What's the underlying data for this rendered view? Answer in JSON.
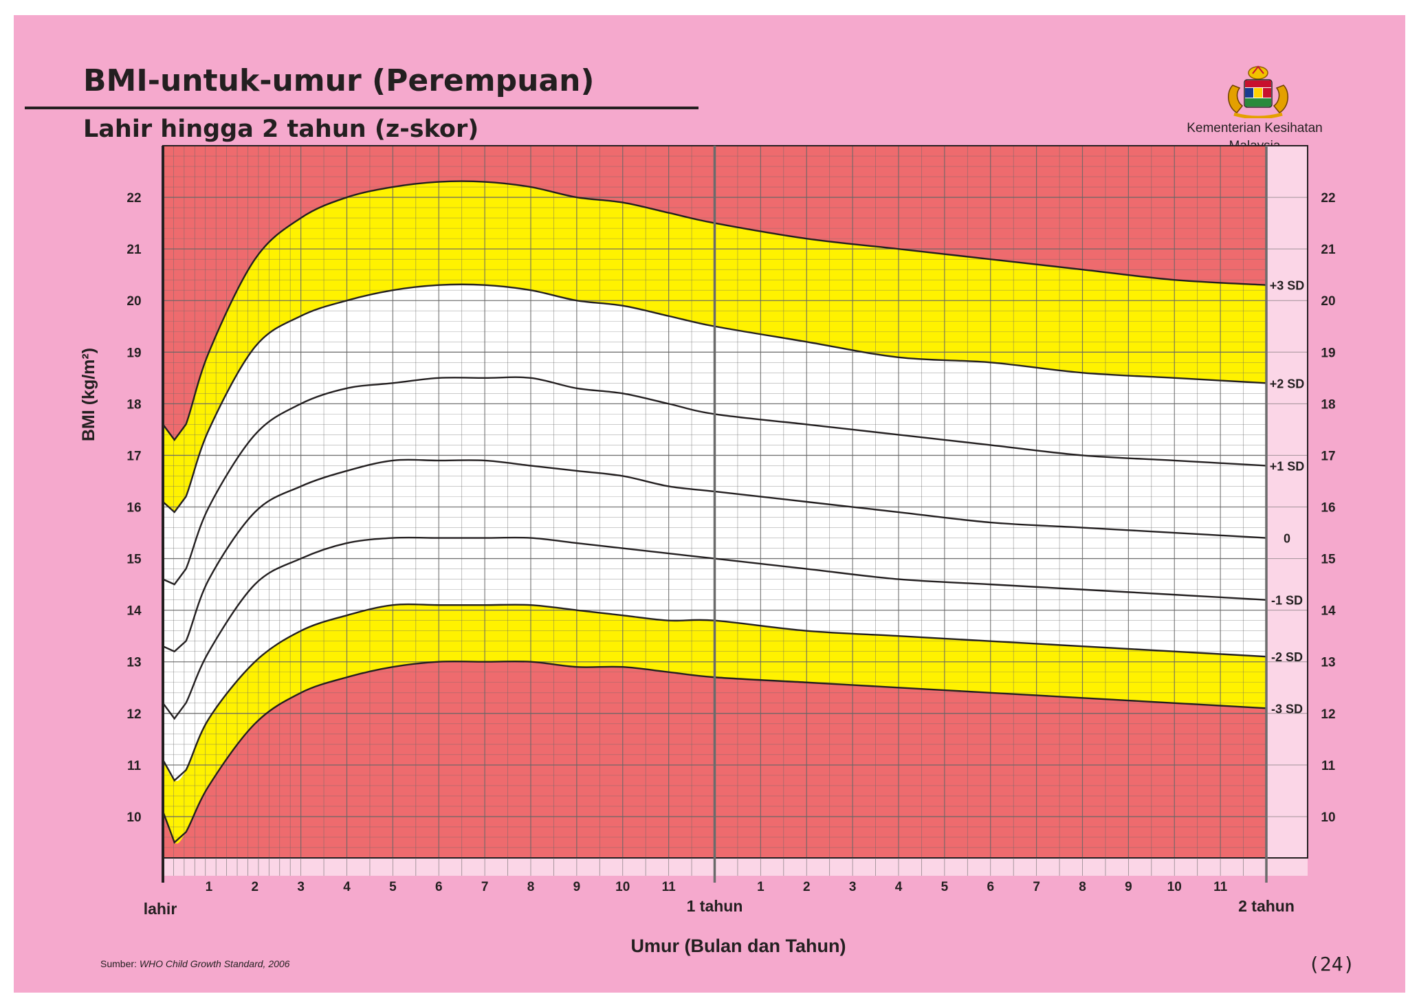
{
  "header": {
    "title": "BMI-untuk-umur (Perempuan)",
    "subtitle": "Lahir hingga 2 tahun (z-skor)",
    "ministry_line1": "Kementerian Kesihatan",
    "ministry_line2": "Malaysia",
    "logo": "malaysia-coat-of-arms"
  },
  "footer": {
    "source_label": "Sumber:",
    "source_text": "WHO Child Growth Standard, 2006",
    "page_number": "(24)"
  },
  "chart_data": {
    "type": "line",
    "ylabel": "BMI (kg/m²)",
    "xlabel": "Umur (Bulan dan Tahun)",
    "x_unit": "months",
    "xlim": [
      0,
      24
    ],
    "ylim": [
      9.2,
      23
    ],
    "y_ticks": [
      10,
      11,
      12,
      13,
      14,
      15,
      16,
      17,
      18,
      19,
      20,
      21,
      22
    ],
    "x_tick_labels": [
      {
        "x": 0,
        "label": "lahir"
      },
      {
        "x": 1,
        "label": "1"
      },
      {
        "x": 2,
        "label": "2"
      },
      {
        "x": 3,
        "label": "3"
      },
      {
        "x": 4,
        "label": "4"
      },
      {
        "x": 5,
        "label": "5"
      },
      {
        "x": 6,
        "label": "6"
      },
      {
        "x": 7,
        "label": "7"
      },
      {
        "x": 8,
        "label": "8"
      },
      {
        "x": 9,
        "label": "9"
      },
      {
        "x": 10,
        "label": "10"
      },
      {
        "x": 11,
        "label": "11"
      },
      {
        "x": 12,
        "label": "1 tahun"
      },
      {
        "x": 13,
        "label": "1"
      },
      {
        "x": 14,
        "label": "2"
      },
      {
        "x": 15,
        "label": "3"
      },
      {
        "x": 16,
        "label": "4"
      },
      {
        "x": 17,
        "label": "5"
      },
      {
        "x": 18,
        "label": "6"
      },
      {
        "x": 19,
        "label": "7"
      },
      {
        "x": 20,
        "label": "8"
      },
      {
        "x": 21,
        "label": "9"
      },
      {
        "x": 22,
        "label": "10"
      },
      {
        "x": 23,
        "label": "11"
      },
      {
        "x": 24,
        "label": "2 tahun"
      }
    ],
    "x": [
      0,
      0.25,
      0.5,
      1,
      2,
      3,
      4,
      5,
      6,
      7,
      8,
      9,
      10,
      11,
      12,
      14,
      16,
      18,
      20,
      22,
      24
    ],
    "series": [
      {
        "name": "+3 SD",
        "values": [
          17.6,
          17.3,
          17.6,
          19.0,
          20.8,
          21.6,
          22.0,
          22.2,
          22.3,
          22.3,
          22.2,
          22.0,
          21.9,
          21.7,
          21.5,
          21.2,
          21.0,
          20.8,
          20.6,
          20.4,
          20.3
        ]
      },
      {
        "name": "+2 SD",
        "values": [
          16.1,
          15.9,
          16.2,
          17.5,
          19.1,
          19.7,
          20.0,
          20.2,
          20.3,
          20.3,
          20.2,
          20.0,
          19.9,
          19.7,
          19.5,
          19.2,
          18.9,
          18.8,
          18.6,
          18.5,
          18.4
        ]
      },
      {
        "name": "+1 SD",
        "values": [
          14.6,
          14.5,
          14.8,
          16.0,
          17.4,
          18.0,
          18.3,
          18.4,
          18.5,
          18.5,
          18.5,
          18.3,
          18.2,
          18.0,
          17.8,
          17.6,
          17.4,
          17.2,
          17.0,
          16.9,
          16.8
        ]
      },
      {
        "name": "0",
        "values": [
          13.3,
          13.2,
          13.4,
          14.6,
          15.9,
          16.4,
          16.7,
          16.9,
          16.9,
          16.9,
          16.8,
          16.7,
          16.6,
          16.4,
          16.3,
          16.1,
          15.9,
          15.7,
          15.6,
          15.5,
          15.4
        ]
      },
      {
        "name": "-1 SD",
        "values": [
          12.2,
          11.9,
          12.2,
          13.2,
          14.5,
          15.0,
          15.3,
          15.4,
          15.4,
          15.4,
          15.4,
          15.3,
          15.2,
          15.1,
          15.0,
          14.8,
          14.6,
          14.5,
          14.4,
          14.3,
          14.2
        ]
      },
      {
        "name": "-2 SD",
        "values": [
          11.1,
          10.7,
          10.9,
          11.9,
          13.0,
          13.6,
          13.9,
          14.1,
          14.1,
          14.1,
          14.1,
          14.0,
          13.9,
          13.8,
          13.8,
          13.6,
          13.5,
          13.4,
          13.3,
          13.2,
          13.1
        ]
      },
      {
        "name": "-3 SD",
        "values": [
          10.1,
          9.5,
          9.7,
          10.6,
          11.8,
          12.4,
          12.7,
          12.9,
          13.0,
          13.0,
          13.0,
          12.9,
          12.9,
          12.8,
          12.7,
          12.6,
          12.5,
          12.4,
          12.3,
          12.2,
          12.1
        ]
      }
    ],
    "right_labels": [
      "+3 SD",
      "+2 SD",
      "+1 SD",
      "0",
      "-1 SD",
      "-2 SD",
      "-3 SD"
    ],
    "colors": {
      "background": "#f5a9cd",
      "danger_zone": "#ee6b6e",
      "warning_zone": "#fff200",
      "normal_zone": "#ffffff",
      "grid": "#666666",
      "side_panel": "#fbd6e7",
      "line": "#231f20"
    },
    "grid": true
  }
}
